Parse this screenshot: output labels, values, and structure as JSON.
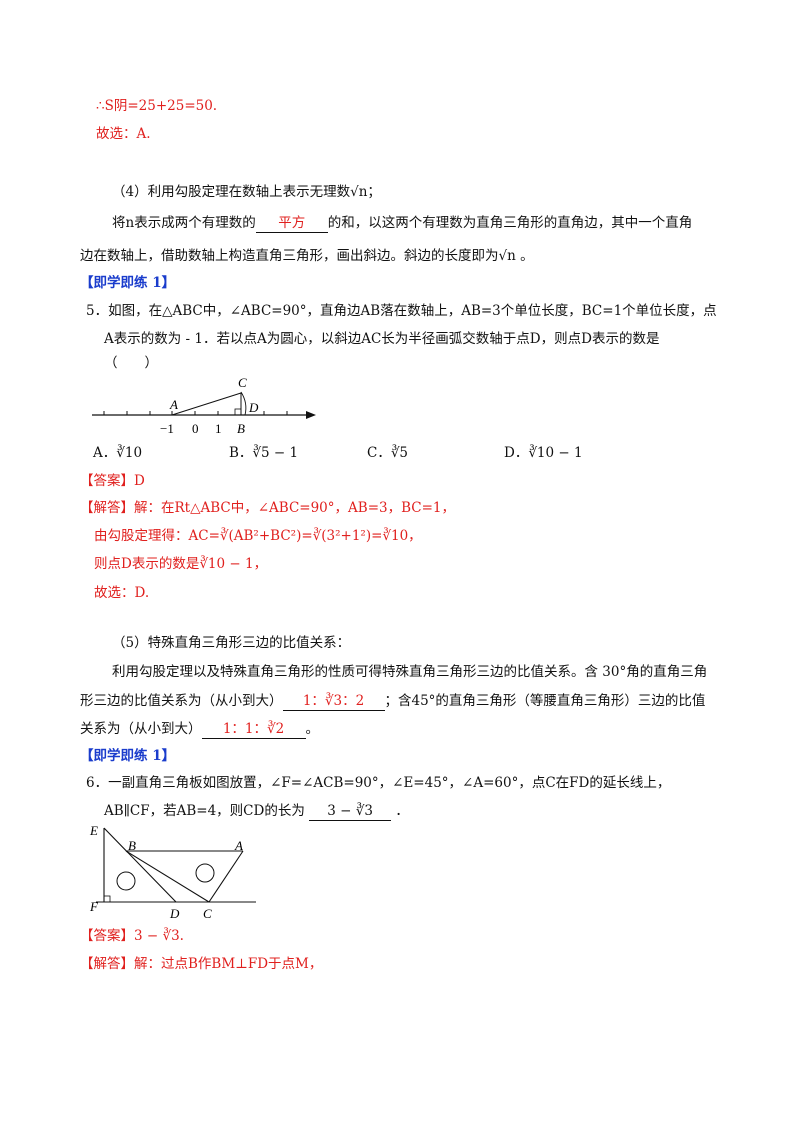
{
  "top": {
    "area_eq": "∴S阴=25+25=50.",
    "choice": "故选：A."
  },
  "s4": {
    "heading": "（4）利用勾股定理在数轴上表示无理数√n；",
    "p1_a": "将n表示成两个有理数的",
    "p1_blank": "平方",
    "p1_b": "的和，以这两个有理数为直角三角形的直角边，其中一个直角",
    "p2": "边在数轴上，借助数轴上构造直角三角形，画出斜边。斜边的长度即为√n 。"
  },
  "practice1_a": "【即学即练 1】",
  "q5": {
    "line1": "5．如图，在△ABC中，∠ABC=90°，直角边AB落在数轴上，AB=3个单位长度，BC=1个单位长度，点",
    "line2": "A表示的数为 - 1．若以点A为圆心，以斜边AC长为半径画弧交数轴于点D，则点D表示的数是",
    "line3": "（　　）",
    "figure": {
      "label_A": "A",
      "label_B": "B",
      "label_C": "C",
      "label_D": "D",
      "tick_m1": "−1",
      "tick_0": "0",
      "tick_1": "1"
    },
    "options": {
      "a": "A．∛10",
      "b": "B．∛5 − 1",
      "c": "C．∛5",
      "d": "D．∛10 − 1"
    },
    "answer": "【答案】D",
    "sol1": "【解答】解：在Rt△ABC中，∠ABC=90°，AB=3，BC=1，",
    "sol2": "由勾股定理得：AC=∛(AB²+BC²)=∛(3²+1²)=∛10，",
    "sol3": "则点D表示的数是∛10 − 1，",
    "sol4": "故选：D."
  },
  "s5": {
    "heading": "（5）特殊直角三角形三边的比值关系：",
    "p1": "利用勾股定理以及特殊直角三角形的性质可得特殊直角三角形三边的比值关系。含 30°角的直角三角",
    "p2_a": "形三边的比值关系为（从小到大）",
    "p2_blank": "1：∛3：2",
    "p2_b": "；含45°的直角三角形（等腰直角三角形）三边的比值",
    "p3_a": "关系为（从小到大）",
    "p3_blank": "1：1：∛2",
    "p3_b": "。"
  },
  "practice1_b": "【即学即练 1】",
  "q6": {
    "line1": "6．一副直角三角板如图放置，∠F=∠ACB=90°，∠E=45°，∠A=60°，点C在FD的延长线上，",
    "line2_a": "AB∥CF，若AB=4，则CD的长为",
    "line2_blank": "3 − ∛3",
    "line2_b": "．",
    "figure": {
      "label_E": "E",
      "label_B": "B",
      "label_A": "A",
      "label_F": "F",
      "label_D": "D",
      "label_C": "C"
    },
    "answer": "【答案】3 − ∛3.",
    "sol1": "【解答】解：过点B作BM⊥FD于点M，"
  }
}
